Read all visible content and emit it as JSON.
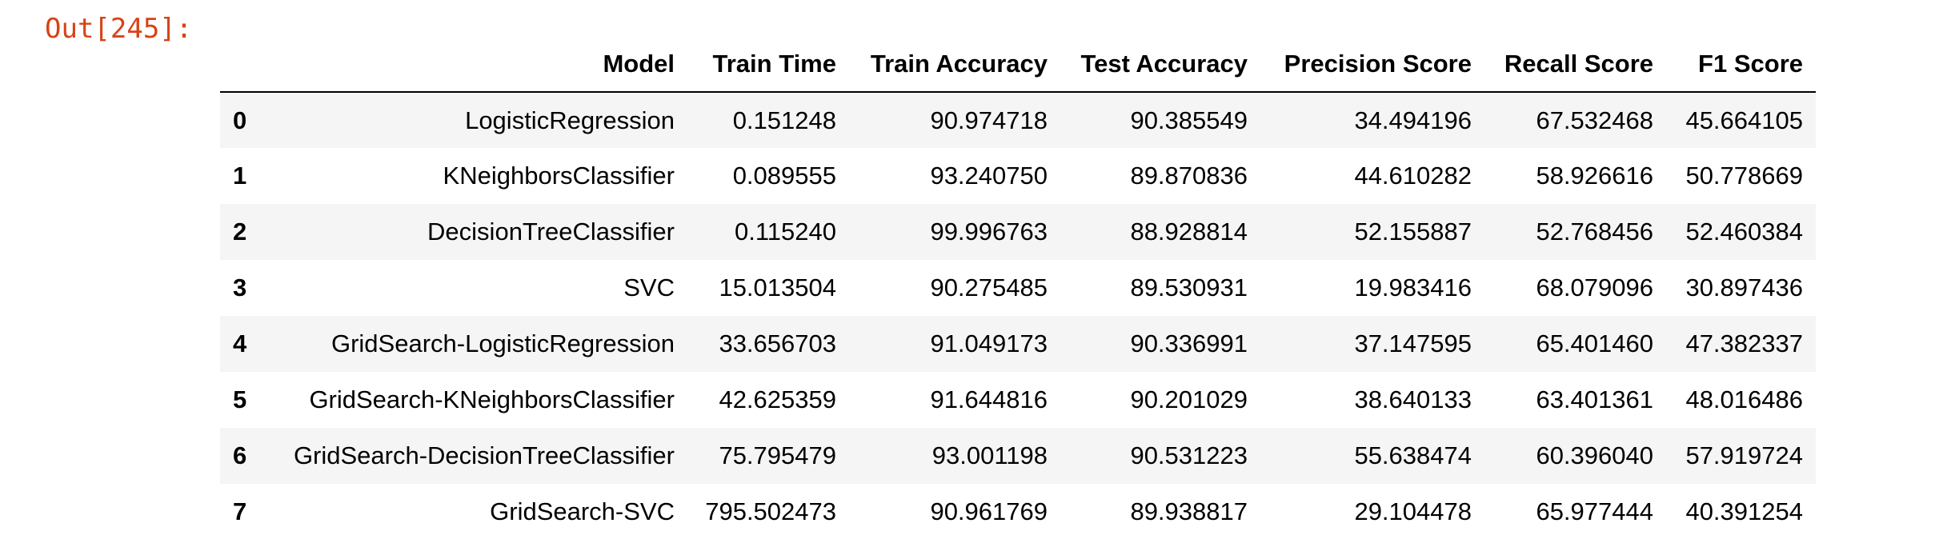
{
  "output_prompt": "Out[245]:",
  "table": {
    "columns": [
      "",
      "Model",
      "Train Time",
      "Train Accuracy",
      "Test Accuracy",
      "Precision Score",
      "Recall Score",
      "F1 Score"
    ],
    "rows": [
      [
        "0",
        "LogisticRegression",
        "0.151248",
        "90.974718",
        "90.385549",
        "34.494196",
        "67.532468",
        "45.664105"
      ],
      [
        "1",
        "KNeighborsClassifier",
        "0.089555",
        "93.240750",
        "89.870836",
        "44.610282",
        "58.926616",
        "50.778669"
      ],
      [
        "2",
        "DecisionTreeClassifier",
        "0.115240",
        "99.996763",
        "88.928814",
        "52.155887",
        "52.768456",
        "52.460384"
      ],
      [
        "3",
        "SVC",
        "15.013504",
        "90.275485",
        "89.530931",
        "19.983416",
        "68.079096",
        "30.897436"
      ],
      [
        "4",
        "GridSearch-LogisticRegression",
        "33.656703",
        "91.049173",
        "90.336991",
        "37.147595",
        "65.401460",
        "47.382337"
      ],
      [
        "5",
        "GridSearch-KNeighborsClassifier",
        "42.625359",
        "91.644816",
        "90.201029",
        "38.640133",
        "63.401361",
        "48.016486"
      ],
      [
        "6",
        "GridSearch-DecisionTreeClassifier",
        "75.795479",
        "93.001198",
        "90.531223",
        "55.638474",
        "60.396040",
        "57.919724"
      ],
      [
        "7",
        "GridSearch-SVC",
        "795.502473",
        "90.961769",
        "89.938817",
        "29.104478",
        "65.977444",
        "40.391254"
      ]
    ]
  }
}
